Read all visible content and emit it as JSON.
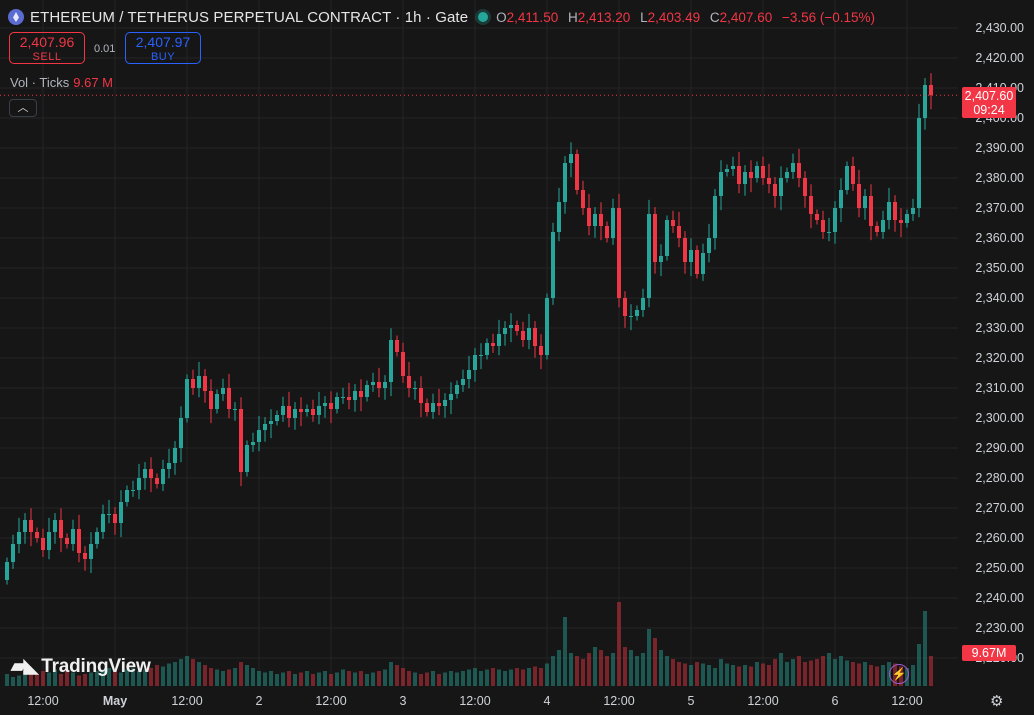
{
  "header": {
    "title": "ETHEREUM / TETHERUS PERPETUAL CONTRACT · 1h · Gate",
    "o_label": "O",
    "o_value": "2,411.50",
    "h_label": "H",
    "h_value": "2,413.20",
    "l_label": "L",
    "l_value": "2,403.49",
    "c_label": "C",
    "c_value": "2,407.60",
    "change": "−3.56 (−0.15%)"
  },
  "trade": {
    "sell_price": "2,407.96",
    "sell_label": "SELL",
    "spread": "0.01",
    "buy_price": "2,407.97",
    "buy_label": "BUY"
  },
  "volume_legend": {
    "label": "Vol · Ticks",
    "value": "9.67 M"
  },
  "price_tag": {
    "price": "2,407.60",
    "countdown": "09:24"
  },
  "volume_tag": "9.67M",
  "logo_text": "TradingView",
  "icons": {
    "coin": "ethereum-coin-icon",
    "live": "live-status-icon",
    "collapse": "chevron-up-icon",
    "bolt": "lightning-icon",
    "gear": "settings-gear-icon"
  },
  "colors": {
    "up": "#26a69a",
    "down": "#f23645",
    "background": "#161616",
    "grid": "#242424"
  },
  "chart_data": {
    "type": "candlestick",
    "interval": "1h",
    "y_axis": {
      "range": [
        2215,
        2435
      ],
      "ticks": [
        "2,430.00",
        "2,420.00",
        "2,410.00",
        "2,400.00",
        "2,390.00",
        "2,380.00",
        "2,370.00",
        "2,360.00",
        "2,350.00",
        "2,340.00",
        "2,330.00",
        "2,320.00",
        "2,310.00",
        "2,300.00",
        "2,290.00",
        "2,280.00",
        "2,270.00",
        "2,260.00",
        "2,250.00",
        "2,240.00",
        "2,230.00",
        "2,220.00"
      ]
    },
    "x_axis": {
      "ticks": [
        {
          "label": "12:00",
          "bar": 6,
          "bold": false
        },
        {
          "label": "May",
          "bar": 18,
          "bold": true
        },
        {
          "label": "12:00",
          "bar": 30,
          "bold": false
        },
        {
          "label": "2",
          "bar": 42,
          "bold": false
        },
        {
          "label": "12:00",
          "bar": 54,
          "bold": false
        },
        {
          "label": "3",
          "bar": 66,
          "bold": false
        },
        {
          "label": "12:00",
          "bar": 78,
          "bold": false
        },
        {
          "label": "4",
          "bar": 90,
          "bold": false
        },
        {
          "label": "12:00",
          "bar": 102,
          "bold": false
        },
        {
          "label": "5",
          "bar": 114,
          "bold": false
        },
        {
          "label": "12:00",
          "bar": 126,
          "bold": false
        },
        {
          "label": "6",
          "bar": 138,
          "bold": false
        },
        {
          "label": "12:00",
          "bar": 150,
          "bold": false
        }
      ]
    },
    "last_price": 2407.6,
    "volume_last": "9.67M",
    "close": [
      2252,
      2258,
      2262,
      2266,
      2262,
      2260,
      2256,
      2262,
      2266,
      2260,
      2258,
      2263,
      2255,
      2253,
      2258,
      2262,
      2268,
      2268,
      2265,
      2272,
      2276,
      2276,
      2280,
      2283,
      2280,
      2278,
      2283,
      2285,
      2290,
      2300,
      2313,
      2310,
      2314,
      2309,
      2303,
      2308,
      2310,
      2303,
      2303,
      2282,
      2291,
      2292,
      2296,
      2298,
      2299,
      2301,
      2304,
      2300,
      2303,
      2302,
      2303,
      2301,
      2304,
      2305,
      2303,
      2307,
      2307,
      2306,
      2309,
      2307,
      2311,
      2312,
      2310,
      2312,
      2326,
      2322,
      2314,
      2310,
      2310,
      2305,
      2302,
      2305,
      2304,
      2306,
      2308,
      2311,
      2313,
      2316,
      2321,
      2321,
      2325,
      2324,
      2328,
      2330,
      2331,
      2329,
      2326,
      2330,
      2324,
      2321,
      2340,
      2362,
      2372,
      2385,
      2388,
      2376,
      2370,
      2364,
      2368,
      2364,
      2360,
      2370,
      2340,
      2334,
      2334,
      2336,
      2340,
      2368,
      2352,
      2354,
      2366,
      2364,
      2360,
      2352,
      2356,
      2348,
      2355,
      2360,
      2374,
      2382,
      2383,
      2384,
      2378,
      2382,
      2380,
      2384,
      2380,
      2378,
      2374,
      2380,
      2382,
      2385,
      2380,
      2374,
      2368,
      2366,
      2362,
      2362,
      2370,
      2376,
      2384,
      2378,
      2370,
      2374,
      2364,
      2362,
      2366,
      2372,
      2366,
      2365,
      2368,
      2370,
      2400,
      2411,
      2407.6
    ],
    "volume": [
      0.4,
      0.3,
      0.35,
      0.5,
      0.45,
      0.4,
      0.5,
      0.45,
      0.55,
      0.4,
      0.5,
      0.45,
      0.35,
      0.4,
      0.45,
      0.5,
      0.55,
      0.6,
      0.5,
      0.45,
      0.55,
      0.6,
      0.5,
      0.55,
      0.6,
      0.7,
      0.65,
      0.75,
      0.8,
      0.9,
      1.0,
      0.9,
      0.8,
      0.7,
      0.6,
      0.55,
      0.5,
      0.55,
      0.6,
      0.8,
      0.7,
      0.6,
      0.5,
      0.45,
      0.5,
      0.4,
      0.45,
      0.5,
      0.4,
      0.45,
      0.5,
      0.4,
      0.45,
      0.5,
      0.4,
      0.45,
      0.55,
      0.5,
      0.45,
      0.5,
      0.4,
      0.45,
      0.5,
      0.55,
      0.8,
      0.7,
      0.6,
      0.5,
      0.45,
      0.4,
      0.45,
      0.5,
      0.4,
      0.45,
      0.5,
      0.45,
      0.5,
      0.55,
      0.6,
      0.5,
      0.55,
      0.6,
      0.55,
      0.5,
      0.55,
      0.6,
      0.55,
      0.6,
      0.65,
      0.6,
      0.75,
      1.0,
      1.2,
      2.3,
      1.1,
      1.0,
      0.9,
      1.1,
      1.3,
      1.2,
      1.0,
      1.1,
      2.8,
      1.3,
      1.2,
      1.0,
      1.1,
      1.9,
      1.6,
      1.2,
      1.0,
      0.9,
      0.8,
      0.75,
      0.7,
      0.8,
      0.75,
      0.7,
      0.6,
      0.9,
      0.75,
      0.7,
      0.65,
      0.7,
      0.65,
      0.8,
      0.75,
      0.7,
      0.9,
      1.1,
      0.8,
      0.9,
      1.0,
      0.8,
      0.85,
      0.9,
      1.0,
      1.1,
      0.9,
      1.0,
      0.85,
      0.8,
      0.75,
      0.8,
      0.7,
      0.65,
      0.7,
      0.8,
      0.75,
      0.65,
      0.6,
      0.7,
      1.4,
      2.5,
      1.0
    ]
  }
}
